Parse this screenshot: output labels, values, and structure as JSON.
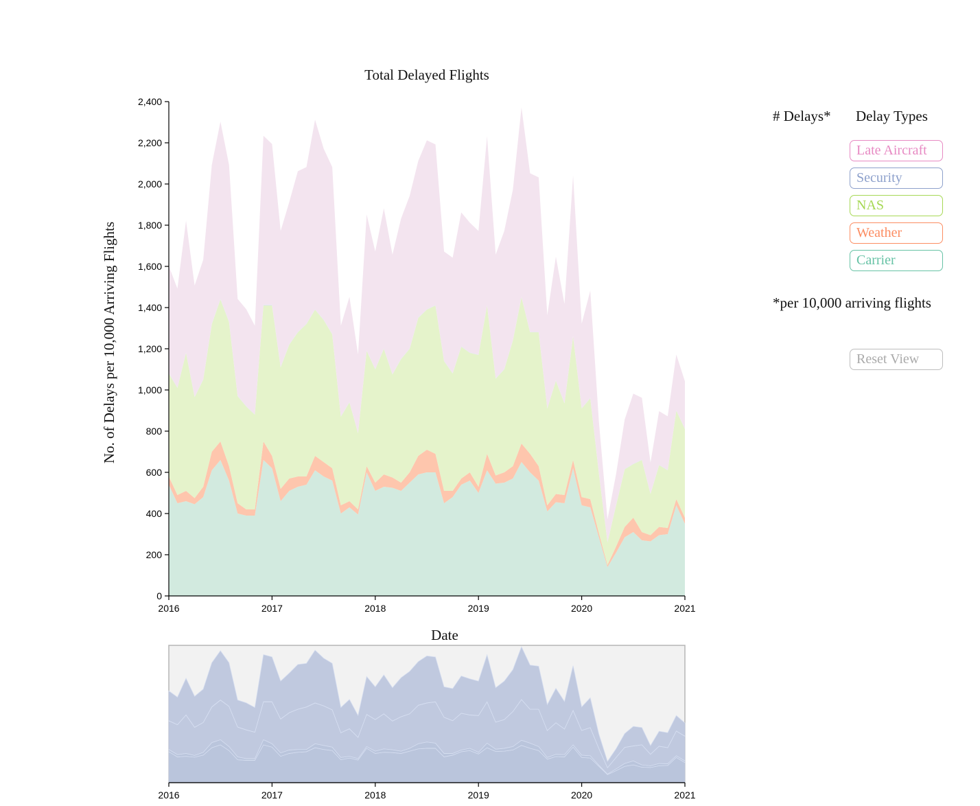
{
  "chart_data": {
    "type": "area",
    "stacked": true,
    "title": "Total Delayed Flights",
    "xlabel": "Date",
    "ylabel": "No. of Delays per 10,000 Arriving Flights",
    "ylim": [
      0,
      2400
    ],
    "yticks": [
      "0",
      "200",
      "400",
      "600",
      "800",
      "1,000",
      "1,200",
      "1,400",
      "1,600",
      "1,800",
      "2,000",
      "2,200",
      "2,400"
    ],
    "xticks": [
      "2016",
      "2017",
      "2018",
      "2019",
      "2020",
      "2021"
    ],
    "x_start": "2016-01",
    "x_end": "2021-01",
    "x": [
      "2016-01",
      "2016-02",
      "2016-03",
      "2016-04",
      "2016-05",
      "2016-06",
      "2016-07",
      "2016-08",
      "2016-09",
      "2016-10",
      "2016-11",
      "2016-12",
      "2017-01",
      "2017-02",
      "2017-03",
      "2017-04",
      "2017-05",
      "2017-06",
      "2017-07",
      "2017-08",
      "2017-09",
      "2017-10",
      "2017-11",
      "2017-12",
      "2018-01",
      "2018-02",
      "2018-03",
      "2018-04",
      "2018-05",
      "2018-06",
      "2018-07",
      "2018-08",
      "2018-09",
      "2018-10",
      "2018-11",
      "2018-12",
      "2019-01",
      "2019-02",
      "2019-03",
      "2019-04",
      "2019-05",
      "2019-06",
      "2019-07",
      "2019-08",
      "2019-09",
      "2019-10",
      "2019-11",
      "2019-12",
      "2020-01",
      "2020-02",
      "2020-03",
      "2020-04",
      "2020-05",
      "2020-06",
      "2020-07",
      "2020-08",
      "2020-09",
      "2020-10",
      "2020-11",
      "2020-12",
      "2021-01"
    ],
    "series": [
      {
        "name": "Carrier",
        "color": "#66c2a5",
        "fill": "#d2eadf",
        "values": [
          540,
          450,
          460,
          445,
          480,
          610,
          660,
          560,
          400,
          390,
          390,
          660,
          620,
          460,
          510,
          530,
          540,
          610,
          580,
          560,
          400,
          430,
          395,
          600,
          510,
          530,
          525,
          510,
          550,
          590,
          600,
          600,
          450,
          480,
          540,
          560,
          500,
          610,
          545,
          550,
          570,
          650,
          600,
          560,
          410,
          455,
          450,
          620,
          440,
          430,
          285,
          140,
          210,
          285,
          310,
          270,
          265,
          295,
          300,
          440,
          350
        ]
      },
      {
        "name": "Weather",
        "color": "#fc8d62",
        "fill": "#fec6ad",
        "values": [
          40,
          40,
          50,
          30,
          50,
          90,
          90,
          70,
          50,
          30,
          30,
          90,
          60,
          60,
          60,
          50,
          40,
          70,
          70,
          60,
          40,
          30,
          25,
          30,
          40,
          60,
          50,
          40,
          50,
          90,
          110,
          90,
          60,
          30,
          30,
          40,
          30,
          80,
          40,
          50,
          60,
          90,
          90,
          70,
          30,
          40,
          40,
          40,
          40,
          40,
          20,
          10,
          30,
          50,
          70,
          40,
          30,
          40,
          30,
          30,
          30
        ]
      },
      {
        "name": "NAS",
        "color": "#a6d854",
        "fill": "#e5f3cb",
        "values": [
          500,
          520,
          670,
          490,
          520,
          620,
          690,
          700,
          520,
          500,
          460,
          660,
          730,
          590,
          650,
          700,
          740,
          710,
          690,
          650,
          430,
          480,
          370,
          560,
          550,
          610,
          500,
          600,
          600,
          670,
          680,
          720,
          630,
          570,
          640,
          580,
          640,
          720,
          470,
          500,
          610,
          710,
          590,
          650,
          470,
          550,
          445,
          600,
          430,
          490,
          290,
          110,
          200,
          280,
          260,
          350,
          200,
          300,
          280,
          430,
          430
        ]
      },
      {
        "name": "Security",
        "color": "#8da0cb",
        "fill": "#e1e6f1",
        "values": [
          2,
          2,
          2,
          2,
          2,
          3,
          3,
          3,
          2,
          2,
          2,
          4,
          4,
          2,
          2,
          2,
          2,
          2,
          2,
          2,
          2,
          2,
          2,
          2,
          2,
          2,
          2,
          2,
          2,
          2,
          2,
          2,
          2,
          2,
          2,
          2,
          2,
          2,
          2,
          2,
          2,
          2,
          2,
          2,
          2,
          2,
          2,
          2,
          2,
          2,
          2,
          2,
          2,
          2,
          2,
          2,
          2,
          2,
          2,
          2,
          2
        ]
      },
      {
        "name": "Late Aircraft",
        "color": "#e78ac3",
        "fill": "#f3e4ef",
        "values": [
          520,
          480,
          640,
          540,
          580,
          770,
          860,
          760,
          470,
          470,
          430,
          820,
          780,
          660,
          690,
          780,
          760,
          920,
          830,
          810,
          440,
          510,
          380,
          660,
          570,
          680,
          580,
          680,
          740,
          760,
          820,
          780,
          530,
          560,
          650,
          630,
          600,
          820,
          600,
          670,
          730,
          920,
          770,
          750,
          450,
          600,
          480,
          780,
          410,
          520,
          250,
          110,
          150,
          240,
          340,
          300,
          150,
          260,
          260,
          270,
          230
        ]
      }
    ]
  },
  "overview_ticks": [
    "2016",
    "2017",
    "2018",
    "2019",
    "2020",
    "2021"
  ],
  "overview_color": "#8da0cb",
  "panel": {
    "delays_heading": "# Delays*",
    "types_heading": "Delay Types",
    "footnote": "*per 10,000 arriving flights",
    "reset_label": "Reset View",
    "buttons": [
      {
        "label": "Late Aircraft",
        "color": "#e78ac3"
      },
      {
        "label": "Security",
        "color": "#8da0cb"
      },
      {
        "label": "NAS",
        "color": "#a6d854"
      },
      {
        "label": "Weather",
        "color": "#fc8d62"
      },
      {
        "label": "Carrier",
        "color": "#66c2a5"
      }
    ]
  }
}
